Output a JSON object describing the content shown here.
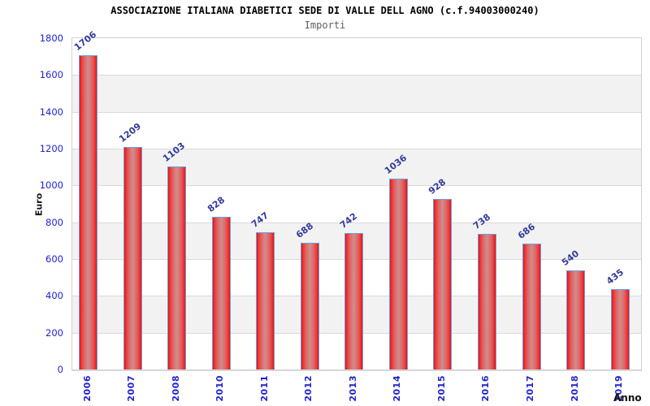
{
  "header": {
    "title": "ASSOCIAZIONE ITALIANA DIABETICI SEDE DI VALLE DELL AGNO (c.f.94003000240)",
    "subtitle": "Importi"
  },
  "chart_data": {
    "type": "bar",
    "title": "ASSOCIAZIONE ITALIANA DIABETICI SEDE DI VALLE DELL AGNO (c.f.94003000240)",
    "subtitle": "Importi",
    "categories": [
      "2006",
      "2007",
      "2008",
      "2010",
      "2011",
      "2012",
      "2013",
      "2014",
      "2015",
      "2016",
      "2017",
      "2018",
      "2019"
    ],
    "values": [
      1706,
      1209,
      1103,
      828,
      747,
      688,
      742,
      1036,
      928,
      738,
      686,
      540,
      435
    ],
    "xlabel": "Anno",
    "ylabel": "Euro",
    "ylim": [
      0,
      1800
    ],
    "ytick_step": 200,
    "grid": true,
    "legend": null,
    "band_fill": "alternating-horizontal"
  },
  "colors": {
    "bar_edge": "#de1414",
    "bar_center": "#cf8d8d",
    "bar_border": "#6aa2e0",
    "axis_tick_label": "#2323cc",
    "value_label": "#333a99",
    "band_gray": "#f2f2f2",
    "grid_line": "#dadada",
    "plot_border": "#d2d2d2",
    "title_text": "#000000",
    "subtitle_text": "#5f5f5f",
    "axis_title_text": "#1a1a1a",
    "background": "#ffffff"
  }
}
